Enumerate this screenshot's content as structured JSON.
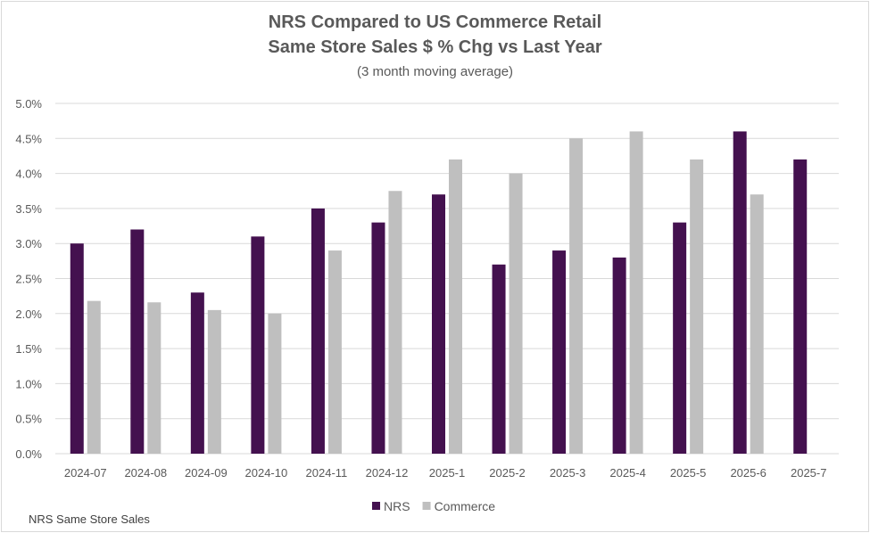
{
  "chart_data": {
    "type": "bar",
    "title": "NRS Compared to US Commerce Retail",
    "subtitle": "Same Store Sales $ % Chg vs Last Year",
    "subtitle2": "(3 month moving average)",
    "xlabel": "",
    "ylabel": "",
    "ylim": [
      0,
      5.0
    ],
    "ytick_step": 0.5,
    "ytick_labels": [
      "0.0%",
      "0.5%",
      "1.0%",
      "1.5%",
      "2.0%",
      "2.5%",
      "3.0%",
      "3.5%",
      "4.0%",
      "4.5%",
      "5.0%"
    ],
    "grid": true,
    "legend_position": "bottom",
    "categories": [
      "2024-07",
      "2024-08",
      "2024-09",
      "2024-10",
      "2024-11",
      "2024-12",
      "2025-1",
      "2025-2",
      "2025-3",
      "2025-4",
      "2025-5",
      "2025-6",
      "2025-7"
    ],
    "series": [
      {
        "name": "NRS",
        "color": "#44114f",
        "values": [
          3.0,
          3.2,
          2.3,
          3.1,
          3.5,
          3.3,
          3.7,
          2.7,
          2.9,
          2.8,
          3.3,
          4.6,
          4.2
        ]
      },
      {
        "name": "Commerce",
        "color": "#bfbfbf",
        "values": [
          2.18,
          2.16,
          2.05,
          2.0,
          2.9,
          3.75,
          4.2,
          4.0,
          4.5,
          4.6,
          4.2,
          3.7,
          null
        ]
      }
    ]
  },
  "footnote": "NRS Same Store Sales"
}
